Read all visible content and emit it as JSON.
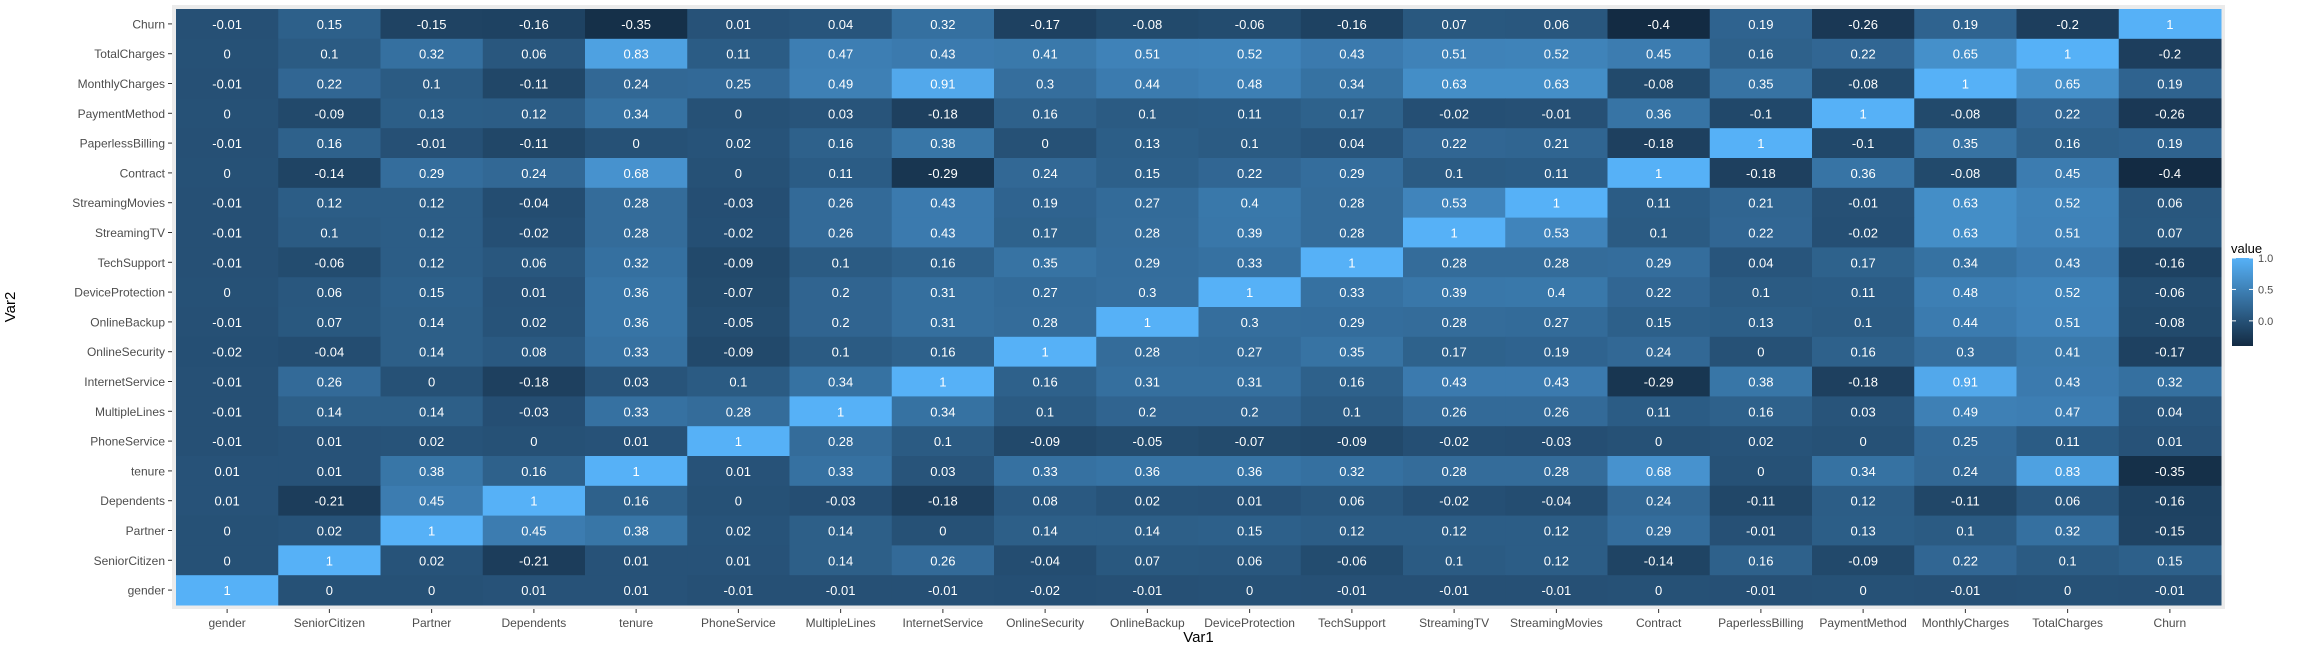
{
  "chart_data": {
    "type": "heatmap",
    "title": "",
    "xlabel": "Var1",
    "ylabel": "Var2",
    "x_categories": [
      "gender",
      "SeniorCitizen",
      "Partner",
      "Dependents",
      "tenure",
      "PhoneService",
      "MultipleLines",
      "InternetService",
      "OnlineSecurity",
      "OnlineBackup",
      "DeviceProtection",
      "TechSupport",
      "StreamingTV",
      "StreamingMovies",
      "Contract",
      "PaperlessBilling",
      "PaymentMethod",
      "MonthlyCharges",
      "TotalCharges",
      "Churn"
    ],
    "y_categories_top_to_bottom": [
      "Churn",
      "TotalCharges",
      "MonthlyCharges",
      "PaymentMethod",
      "PaperlessBilling",
      "Contract",
      "StreamingMovies",
      "StreamingTV",
      "TechSupport",
      "DeviceProtection",
      "OnlineBackup",
      "OnlineSecurity",
      "InternetService",
      "MultipleLines",
      "PhoneService",
      "tenure",
      "Dependents",
      "Partner",
      "SeniorCitizen",
      "gender"
    ],
    "values": [
      [
        -0.01,
        0.15,
        -0.15,
        -0.16,
        -0.35,
        0.01,
        0.04,
        0.32,
        -0.17,
        -0.08,
        -0.06,
        -0.16,
        0.07,
        0.06,
        -0.4,
        0.19,
        -0.26,
        0.19,
        -0.2,
        1
      ],
      [
        0,
        0.1,
        0.32,
        0.06,
        0.83,
        0.11,
        0.47,
        0.43,
        0.41,
        0.51,
        0.52,
        0.43,
        0.51,
        0.52,
        0.45,
        0.16,
        0.22,
        0.65,
        1,
        -0.2
      ],
      [
        -0.01,
        0.22,
        0.1,
        -0.11,
        0.24,
        0.25,
        0.49,
        0.91,
        0.3,
        0.44,
        0.48,
        0.34,
        0.63,
        0.63,
        -0.08,
        0.35,
        -0.08,
        1,
        0.65,
        0.19
      ],
      [
        0,
        -0.09,
        0.13,
        0.12,
        0.34,
        0,
        0.03,
        -0.18,
        0.16,
        0.1,
        0.11,
        0.17,
        -0.02,
        -0.01,
        0.36,
        -0.1,
        1,
        -0.08,
        0.22,
        -0.26
      ],
      [
        -0.01,
        0.16,
        -0.01,
        -0.11,
        0,
        0.02,
        0.16,
        0.38,
        0,
        0.13,
        0.1,
        0.04,
        0.22,
        0.21,
        -0.18,
        1,
        -0.1,
        0.35,
        0.16,
        0.19
      ],
      [
        0,
        -0.14,
        0.29,
        0.24,
        0.68,
        0,
        0.11,
        -0.29,
        0.24,
        0.15,
        0.22,
        0.29,
        0.1,
        0.11,
        1,
        -0.18,
        0.36,
        -0.08,
        0.45,
        -0.4
      ],
      [
        -0.01,
        0.12,
        0.12,
        -0.04,
        0.28,
        -0.03,
        0.26,
        0.43,
        0.19,
        0.27,
        0.4,
        0.28,
        0.53,
        1,
        0.11,
        0.21,
        -0.01,
        0.63,
        0.52,
        0.06
      ],
      [
        -0.01,
        0.1,
        0.12,
        -0.02,
        0.28,
        -0.02,
        0.26,
        0.43,
        0.17,
        0.28,
        0.39,
        0.28,
        1,
        0.53,
        0.1,
        0.22,
        -0.02,
        0.63,
        0.51,
        0.07
      ],
      [
        -0.01,
        -0.06,
        0.12,
        0.06,
        0.32,
        -0.09,
        0.1,
        0.16,
        0.35,
        0.29,
        0.33,
        1,
        0.28,
        0.28,
        0.29,
        0.04,
        0.17,
        0.34,
        0.43,
        -0.16
      ],
      [
        0,
        0.06,
        0.15,
        0.01,
        0.36,
        -0.07,
        0.2,
        0.31,
        0.27,
        0.3,
        1,
        0.33,
        0.39,
        0.4,
        0.22,
        0.1,
        0.11,
        0.48,
        0.52,
        -0.06
      ],
      [
        -0.01,
        0.07,
        0.14,
        0.02,
        0.36,
        -0.05,
        0.2,
        0.31,
        0.28,
        1,
        0.3,
        0.29,
        0.28,
        0.27,
        0.15,
        0.13,
        0.1,
        0.44,
        0.51,
        -0.08
      ],
      [
        -0.02,
        -0.04,
        0.14,
        0.08,
        0.33,
        -0.09,
        0.1,
        0.16,
        1,
        0.28,
        0.27,
        0.35,
        0.17,
        0.19,
        0.24,
        0,
        0.16,
        0.3,
        0.41,
        -0.17
      ],
      [
        -0.01,
        0.26,
        0,
        -0.18,
        0.03,
        0.1,
        0.34,
        1,
        0.16,
        0.31,
        0.31,
        0.16,
        0.43,
        0.43,
        -0.29,
        0.38,
        -0.18,
        0.91,
        0.43,
        0.32
      ],
      [
        -0.01,
        0.14,
        0.14,
        -0.03,
        0.33,
        0.28,
        1,
        0.34,
        0.1,
        0.2,
        0.2,
        0.1,
        0.26,
        0.26,
        0.11,
        0.16,
        0.03,
        0.49,
        0.47,
        0.04
      ],
      [
        -0.01,
        0.01,
        0.02,
        0,
        0.01,
        1,
        0.28,
        0.1,
        -0.09,
        -0.05,
        -0.07,
        -0.09,
        -0.02,
        -0.03,
        0,
        0.02,
        0,
        0.25,
        0.11,
        0.01
      ],
      [
        0.01,
        0.01,
        0.38,
        0.16,
        1,
        0.01,
        0.33,
        0.03,
        0.33,
        0.36,
        0.36,
        0.32,
        0.28,
        0.28,
        0.68,
        0,
        0.34,
        0.24,
        0.83,
        -0.35
      ],
      [
        0.01,
        -0.21,
        0.45,
        1,
        0.16,
        0,
        -0.03,
        -0.18,
        0.08,
        0.02,
        0.01,
        0.06,
        -0.02,
        -0.04,
        0.24,
        -0.11,
        0.12,
        -0.11,
        0.06,
        -0.16
      ],
      [
        0,
        0.02,
        1,
        0.45,
        0.38,
        0.02,
        0.14,
        0,
        0.14,
        0.14,
        0.15,
        0.12,
        0.12,
        0.12,
        0.29,
        -0.01,
        0.13,
        0.1,
        0.32,
        -0.15
      ],
      [
        0,
        1,
        0.02,
        -0.21,
        0.01,
        0.01,
        0.14,
        0.26,
        -0.04,
        0.07,
        0.06,
        -0.06,
        0.1,
        0.12,
        -0.14,
        0.16,
        -0.09,
        0.22,
        0.1,
        0.15
      ],
      [
        1,
        0,
        0,
        0.01,
        0.01,
        -0.01,
        -0.01,
        -0.01,
        -0.02,
        -0.01,
        0,
        -0.01,
        -0.01,
        -0.01,
        0,
        -0.01,
        0,
        -0.01,
        0,
        -0.01
      ]
    ],
    "value_range": [
      -0.4,
      1
    ],
    "legend": {
      "title": "value",
      "ticks": [
        1.0,
        0.5,
        0.0
      ],
      "tick_labels": [
        "1.0",
        "0.5",
        "0.0"
      ],
      "placement": "right"
    },
    "colors": {
      "low": "#132b43",
      "high": "#56b1f7",
      "panel_background": "#ebebeb",
      "cell_text": "#ffffff",
      "axis_text": "#4d4d4d",
      "axis_title": "#000000"
    },
    "grid": false
  }
}
